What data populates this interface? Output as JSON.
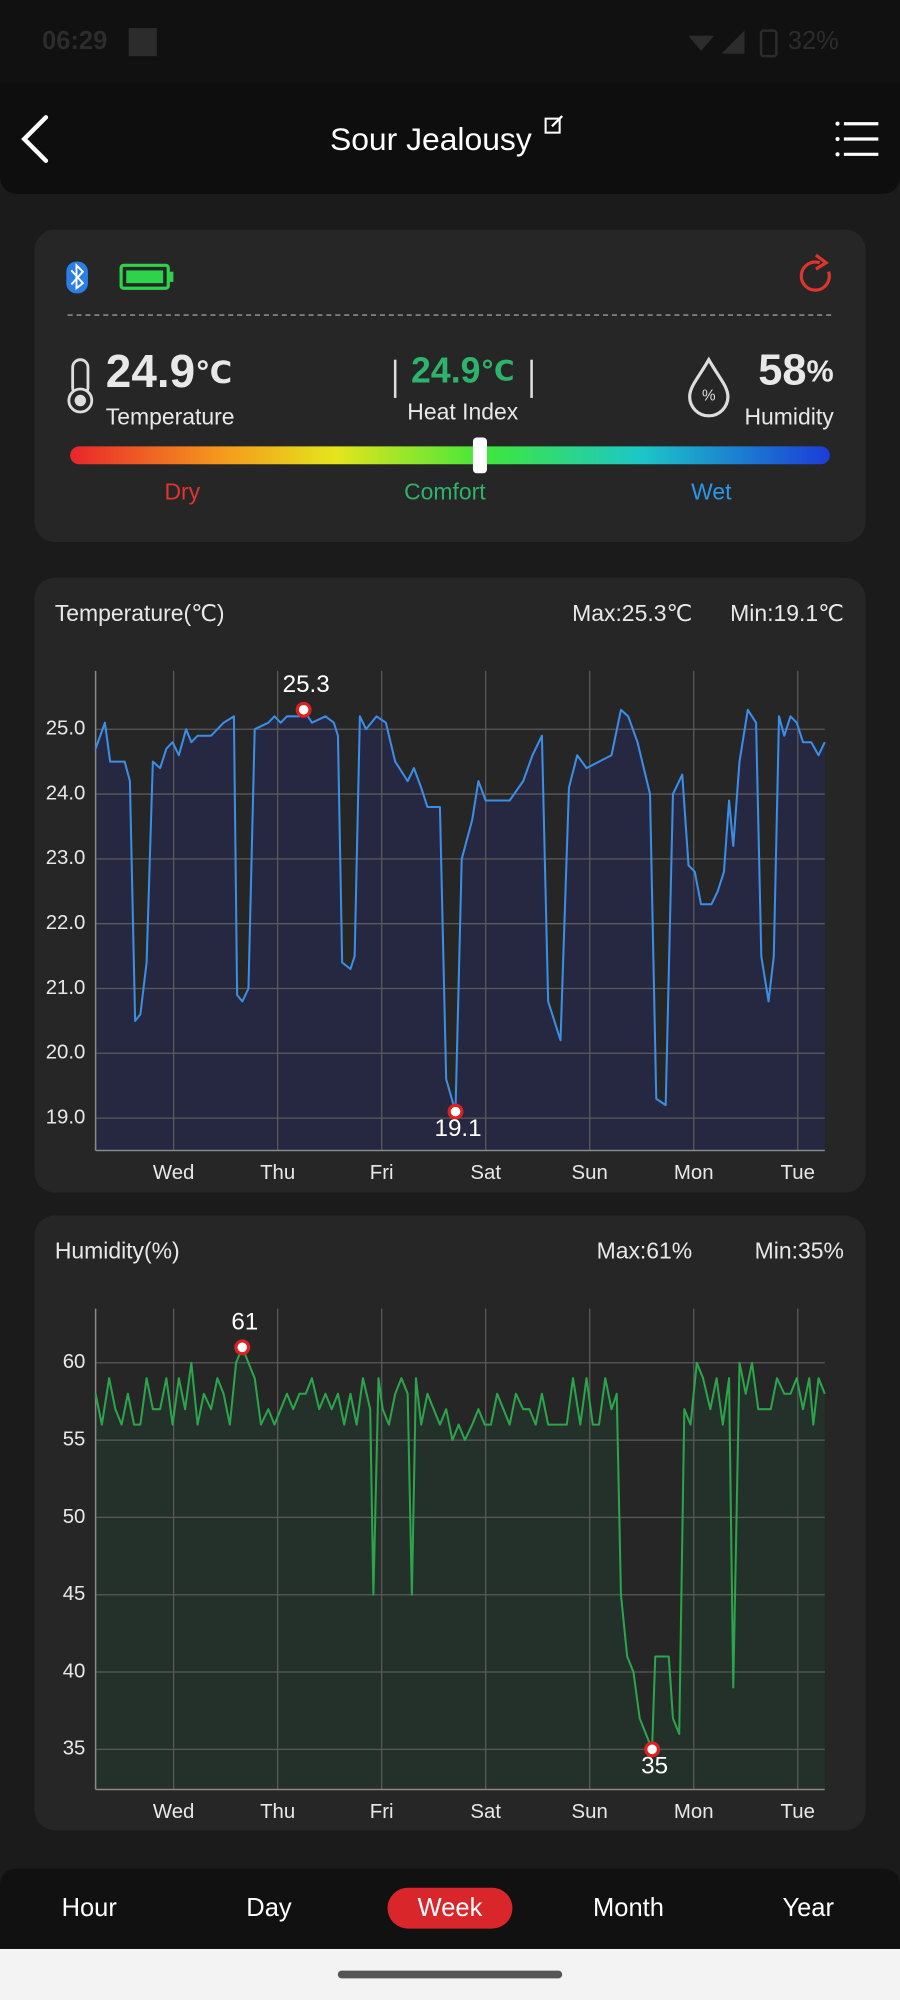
{
  "status_bar": {
    "time": "06:29",
    "battery": "32%"
  },
  "header": {
    "title": "Sour Jealousy"
  },
  "summary": {
    "temperature": {
      "value": 24.9,
      "unit": "℃",
      "label": "Temperature"
    },
    "heat_index": {
      "value": 24.9,
      "unit": "℃",
      "label": "Heat Index"
    },
    "humidity": {
      "value": 58,
      "unit": "%",
      "label": "Humidity"
    },
    "comfort_scale": [
      "Dry",
      "Comfort",
      "Wet"
    ]
  },
  "chart_data": [
    {
      "type": "line",
      "title": "Temperature(℃)",
      "max_label": "Max:25.3℃",
      "min_label": "Min:19.1℃",
      "color": "#3a8ee6",
      "fill": "#262842",
      "grid": true,
      "xlim": [
        0.25,
        7.26
      ],
      "ylim": [
        18.5,
        25.9
      ],
      "xticks": [
        {
          "value": 1,
          "label": "Wed"
        },
        {
          "value": 2,
          "label": "Thu"
        },
        {
          "value": 3,
          "label": "Fri"
        },
        {
          "value": 4,
          "label": "Sat"
        },
        {
          "value": 5,
          "label": "Sun"
        },
        {
          "value": 6,
          "label": "Mon"
        },
        {
          "value": 7,
          "label": "Tue"
        }
      ],
      "yticks": [
        {
          "value": 19,
          "label": "19.0"
        },
        {
          "value": 20,
          "label": "20.0"
        },
        {
          "value": 21,
          "label": "21.0"
        },
        {
          "value": 22,
          "label": "22.0"
        },
        {
          "value": 23,
          "label": "23.0"
        },
        {
          "value": 24,
          "label": "24.0"
        },
        {
          "value": 25,
          "label": "25.0"
        }
      ],
      "x": [
        0.25,
        0.34,
        0.39,
        0.53,
        0.58,
        0.63,
        0.68,
        0.74,
        0.8,
        0.87,
        0.93,
        0.99,
        1.05,
        1.12,
        1.17,
        1.23,
        1.36,
        1.42,
        1.48,
        1.58,
        1.61,
        1.66,
        1.72,
        1.78,
        1.91,
        1.97,
        2.03,
        2.09,
        2.21,
        2.25,
        2.33,
        2.46,
        2.54,
        2.58,
        2.62,
        2.7,
        2.74,
        2.79,
        2.85,
        2.95,
        3.04,
        3.13,
        3.25,
        3.31,
        3.38,
        3.44,
        3.56,
        3.62,
        3.71,
        3.77,
        3.87,
        3.93,
        4.0,
        4.23,
        4.36,
        4.45,
        4.54,
        4.6,
        4.72,
        4.8,
        4.88,
        4.97,
        5.09,
        5.21,
        5.3,
        5.37,
        5.46,
        5.58,
        5.64,
        5.73,
        5.8,
        5.89,
        5.95,
        6.01,
        6.07,
        6.17,
        6.23,
        6.29,
        6.34,
        6.38,
        6.44,
        6.52,
        6.6,
        6.65,
        6.72,
        6.77,
        6.82,
        6.87,
        6.93,
        6.99,
        7.05,
        7.13,
        7.2,
        7.26
      ],
      "values": [
        24.7,
        25.1,
        24.5,
        24.5,
        24.2,
        20.5,
        20.6,
        21.4,
        24.5,
        24.4,
        24.7,
        24.8,
        24.6,
        25.0,
        24.8,
        24.9,
        24.9,
        25.0,
        25.1,
        25.2,
        20.9,
        20.8,
        21.0,
        25.0,
        25.1,
        25.2,
        25.1,
        25.2,
        25.2,
        25.3,
        25.1,
        25.2,
        25.1,
        24.9,
        21.4,
        21.3,
        21.5,
        25.2,
        25.0,
        25.2,
        25.1,
        24.5,
        24.2,
        24.4,
        24.1,
        23.8,
        23.8,
        19.6,
        19.1,
        23.0,
        23.6,
        24.2,
        23.9,
        23.9,
        24.2,
        24.6,
        24.9,
        20.8,
        20.2,
        24.1,
        24.6,
        24.4,
        24.5,
        24.6,
        25.3,
        25.2,
        24.8,
        24.0,
        19.3,
        19.2,
        24.0,
        24.3,
        22.9,
        22.8,
        22.3,
        22.3,
        22.5,
        22.8,
        23.9,
        23.2,
        24.5,
        25.3,
        25.1,
        21.5,
        20.8,
        21.5,
        25.2,
        24.9,
        25.2,
        25.1,
        24.8,
        24.8,
        24.6,
        24.8
      ],
      "max": {
        "x": 2.25,
        "value": 25.3
      },
      "min": {
        "x": 3.71,
        "value": 19.1
      }
    },
    {
      "type": "line",
      "title": "Humidity(%)",
      "max_label": "Max:61%",
      "min_label": "Min:35%",
      "color": "#2aa54a",
      "fill": "#24302a",
      "grid": true,
      "xlim": [
        0.25,
        7.26
      ],
      "ylim": [
        32.4,
        63.5
      ],
      "xticks": [
        {
          "value": 1,
          "label": "Wed"
        },
        {
          "value": 2,
          "label": "Thu"
        },
        {
          "value": 3,
          "label": "Fri"
        },
        {
          "value": 4,
          "label": "Sat"
        },
        {
          "value": 5,
          "label": "Sun"
        },
        {
          "value": 6,
          "label": "Mon"
        },
        {
          "value": 7,
          "label": "Tue"
        }
      ],
      "yticks": [
        35,
        40,
        45,
        50,
        55,
        60
      ],
      "x": [
        0.25,
        0.31,
        0.38,
        0.44,
        0.5,
        0.56,
        0.62,
        0.68,
        0.74,
        0.8,
        0.87,
        0.93,
        0.99,
        1.05,
        1.11,
        1.17,
        1.23,
        1.29,
        1.36,
        1.42,
        1.48,
        1.54,
        1.6,
        1.66,
        1.72,
        1.78,
        1.84,
        1.91,
        1.97,
        2.03,
        2.09,
        2.15,
        2.21,
        2.27,
        2.33,
        2.4,
        2.46,
        2.52,
        2.58,
        2.64,
        2.7,
        2.76,
        2.82,
        2.89,
        2.92,
        2.97,
        3.01,
        3.07,
        3.13,
        3.19,
        3.25,
        3.29,
        3.33,
        3.38,
        3.44,
        3.5,
        3.56,
        3.62,
        3.68,
        3.74,
        3.8,
        3.87,
        3.93,
        3.99,
        4.05,
        4.11,
        4.17,
        4.23,
        4.29,
        4.36,
        4.42,
        4.48,
        4.54,
        4.6,
        4.66,
        4.72,
        4.78,
        4.84,
        4.91,
        4.97,
        5.03,
        5.09,
        5.15,
        5.21,
        5.26,
        5.3,
        5.36,
        5.42,
        5.48,
        5.54,
        5.6,
        5.63,
        5.7,
        5.76,
        5.8,
        5.86,
        5.91,
        5.97,
        6.03,
        6.09,
        6.16,
        6.22,
        6.28,
        6.34,
        6.38,
        6.44,
        6.5,
        6.56,
        6.62,
        6.68,
        6.74,
        6.8,
        6.87,
        6.93,
        6.99,
        7.05,
        7.11,
        7.15,
        7.2,
        7.26
      ],
      "values": [
        58,
        56,
        59,
        57,
        56,
        58,
        56,
        56,
        59,
        57,
        57,
        59,
        56,
        59,
        57,
        60,
        56,
        58,
        57,
        59,
        58,
        56,
        60,
        61,
        60,
        59,
        56,
        57,
        56,
        57,
        58,
        57,
        58,
        58,
        59,
        57,
        58,
        57,
        58,
        56,
        58,
        56,
        59,
        57,
        45,
        59,
        57,
        56,
        58,
        59,
        58,
        45,
        59,
        56,
        58,
        57,
        56,
        57,
        55,
        56,
        55,
        56,
        57,
        56,
        56,
        58,
        57,
        56,
        58,
        57,
        57,
        56,
        58,
        56,
        56,
        56,
        56,
        59,
        56,
        59,
        56,
        56,
        59,
        57,
        58,
        45,
        41,
        40,
        37,
        36,
        35,
        41,
        41,
        41,
        37,
        36,
        57,
        56,
        60,
        59,
        57,
        59,
        56,
        59,
        39,
        60,
        58,
        60,
        57,
        57,
        57,
        59,
        58,
        58,
        59,
        57,
        59,
        56,
        59,
        58
      ],
      "max": {
        "x": 1.66,
        "value": 61
      },
      "min": {
        "x": 5.6,
        "value": 35
      }
    }
  ],
  "tabs": [
    "Hour",
    "Day",
    "Week",
    "Month",
    "Year"
  ],
  "active_tab": 2
}
